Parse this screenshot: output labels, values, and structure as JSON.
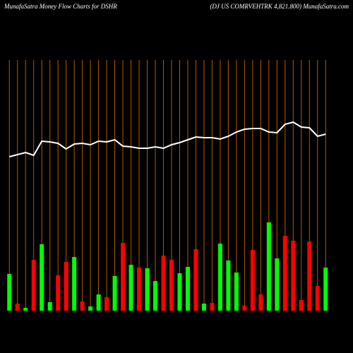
{
  "chart_data": {
    "type": "bar",
    "title": "MunafaSatra  Money Flow  Charts for DSHR",
    "subtitle": "(DJ US COMRVEHTRK 4,821.800) MunafaSatra.com",
    "categories": [
      null,
      null,
      null,
      null,
      null,
      null,
      null,
      null,
      null,
      null,
      null,
      null,
      null,
      null,
      null,
      null,
      null,
      null,
      null,
      null,
      null,
      null,
      null,
      null,
      null,
      null,
      null,
      null,
      null,
      null,
      null,
      null,
      null,
      null,
      null,
      null,
      null,
      null,
      null,
      null
    ],
    "values": [
      52,
      10,
      4,
      72,
      94,
      12,
      50,
      69,
      76,
      13,
      6,
      23,
      19,
      49,
      96,
      65,
      61,
      60,
      42,
      78,
      72,
      53,
      62,
      87,
      10,
      11,
      95,
      71,
      54,
      7,
      86,
      23,
      125,
      74,
      106,
      99,
      15,
      98,
      35,
      61
    ],
    "colors": [
      "#00ff00",
      "#ff0000",
      "#00ff00",
      "#ff0000",
      "#00ff00",
      "#00ff00",
      "#ff0000",
      "#ff0000",
      "#00ff00",
      "#ff0000",
      "#00ff00",
      "#00ff00",
      "#ff0000",
      "#00ff00",
      "#ff0000",
      "#00ff00",
      "#ff0000",
      "#00ff00",
      "#00ff00",
      "#ff0000",
      "#ff0000",
      "#00ff00",
      "#00ff00",
      "#ff0000",
      "#00ff00",
      "#ff0000",
      "#00ff00",
      "#00ff00",
      "#00ff00",
      "#ff0000",
      "#ff0000",
      "#ff0000",
      "#00ff00",
      "#00ff00",
      "#ff0000",
      "#ff0000",
      "#ff0000",
      "#ff0000",
      "#ff0000",
      "#00ff00"
    ],
    "ylim": [
      0,
      355
    ],
    "line": {
      "color": "#ffffff",
      "axis": "y2",
      "values": [
        278,
        281,
        284,
        280,
        300,
        299,
        297,
        289,
        296,
        297,
        295,
        300,
        299,
        302,
        293,
        292,
        290,
        290,
        292,
        290,
        295,
        298,
        302,
        306,
        305,
        305,
        303,
        307,
        313,
        317,
        318,
        318,
        313,
        312,
        324,
        327,
        320,
        319,
        307,
        310
      ]
    },
    "y2lim": [
      0,
      500
    ],
    "grid_color": "#b35900"
  }
}
